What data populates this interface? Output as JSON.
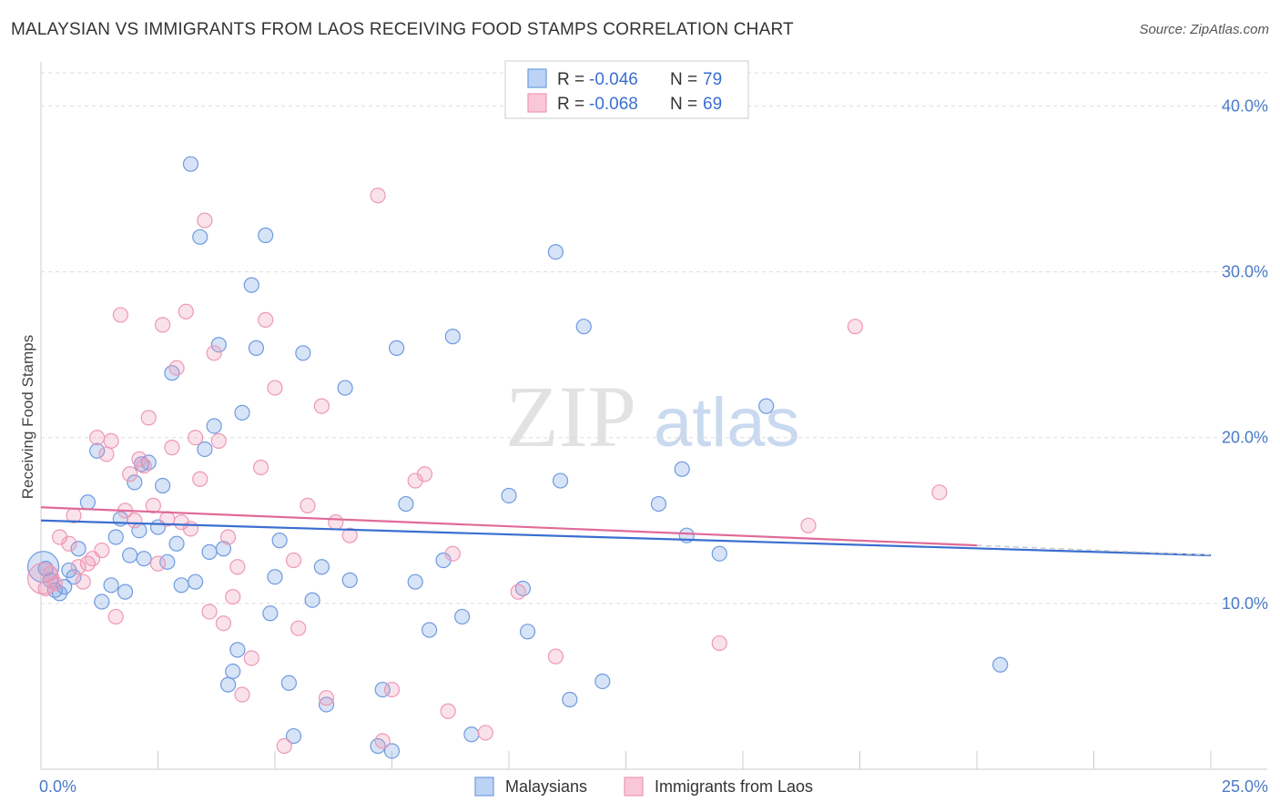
{
  "header": {
    "title": "MALAYSIAN VS IMMIGRANTS FROM LAOS RECEIVING FOOD STAMPS CORRELATION CHART",
    "source": "Source: ZipAtlas.com"
  },
  "watermark": {
    "zip": "ZIP",
    "atlas": "atlas"
  },
  "legend": {
    "r_label": "R =",
    "n_label": "N =",
    "series1": {
      "r": "-0.046",
      "n": "79"
    },
    "series2": {
      "r": "-0.068",
      "n": "69"
    }
  },
  "bottom_legend": {
    "series1": "Malaysians",
    "series2": "Immigrants from Laos"
  },
  "chart_data": {
    "type": "scatter",
    "title": "MALAYSIAN VS IMMIGRANTS FROM LAOS RECEIVING FOOD STAMPS CORRELATION CHART",
    "xlabel": "",
    "ylabel": "Receiving Food Stamps",
    "xlim": [
      0,
      25
    ],
    "ylim": [
      0,
      42
    ],
    "x_tick_labels": [
      "0.0%",
      "25.0%"
    ],
    "y_ticks": [
      10,
      20,
      30,
      40
    ],
    "y_tick_labels": [
      "10.0%",
      "20.0%",
      "30.0%",
      "40.0%"
    ],
    "grid": true,
    "legend_position": "top-center",
    "colors": {
      "series1": "#6f9be0",
      "series2": "#ee98b6",
      "trend1": "#3a6fd0",
      "trend2": "#e06a98"
    },
    "series": [
      {
        "name": "Malaysians",
        "r": -0.046,
        "n": 79,
        "trend": {
          "x": [
            0,
            25
          ],
          "y": [
            15.0,
            12.9
          ]
        },
        "points": [
          [
            0.1,
            12.1
          ],
          [
            0.2,
            11.4
          ],
          [
            0.3,
            10.8
          ],
          [
            0.4,
            10.6
          ],
          [
            0.5,
            11.0
          ],
          [
            0.6,
            12.0
          ],
          [
            0.7,
            11.6
          ],
          [
            0.8,
            13.3
          ],
          [
            1.0,
            16.1
          ],
          [
            1.2,
            19.2
          ],
          [
            1.3,
            10.1
          ],
          [
            1.5,
            11.1
          ],
          [
            1.6,
            14.0
          ],
          [
            1.7,
            15.1
          ],
          [
            1.8,
            10.7
          ],
          [
            1.9,
            12.9
          ],
          [
            2.0,
            17.3
          ],
          [
            2.1,
            14.4
          ],
          [
            2.15,
            18.4
          ],
          [
            2.2,
            12.7
          ],
          [
            2.3,
            18.5
          ],
          [
            2.5,
            14.6
          ],
          [
            2.6,
            17.1
          ],
          [
            2.7,
            12.5
          ],
          [
            2.8,
            23.9
          ],
          [
            2.9,
            13.6
          ],
          [
            3.0,
            11.1
          ],
          [
            3.2,
            36.5
          ],
          [
            3.3,
            11.3
          ],
          [
            3.4,
            32.1
          ],
          [
            3.5,
            19.3
          ],
          [
            3.6,
            13.1
          ],
          [
            3.7,
            20.7
          ],
          [
            3.8,
            25.6
          ],
          [
            3.9,
            13.3
          ],
          [
            4.0,
            5.1
          ],
          [
            4.1,
            5.9
          ],
          [
            4.2,
            7.2
          ],
          [
            4.3,
            21.5
          ],
          [
            4.5,
            29.2
          ],
          [
            4.6,
            25.4
          ],
          [
            4.8,
            32.2
          ],
          [
            4.9,
            9.4
          ],
          [
            5.0,
            11.6
          ],
          [
            5.1,
            13.8
          ],
          [
            5.3,
            5.2
          ],
          [
            5.4,
            2.0
          ],
          [
            5.6,
            25.1
          ],
          [
            5.8,
            10.2
          ],
          [
            6.0,
            12.2
          ],
          [
            6.1,
            3.9
          ],
          [
            6.5,
            23.0
          ],
          [
            6.6,
            11.4
          ],
          [
            7.2,
            1.4
          ],
          [
            7.3,
            4.8
          ],
          [
            7.5,
            1.1
          ],
          [
            7.6,
            25.4
          ],
          [
            7.8,
            16.0
          ],
          [
            8.0,
            11.3
          ],
          [
            8.3,
            8.4
          ],
          [
            8.6,
            12.6
          ],
          [
            8.8,
            26.1
          ],
          [
            9.0,
            9.2
          ],
          [
            9.2,
            2.1
          ],
          [
            10.0,
            16.5
          ],
          [
            10.3,
            10.9
          ],
          [
            10.4,
            8.3
          ],
          [
            11.0,
            31.2
          ],
          [
            11.1,
            17.4
          ],
          [
            11.3,
            4.2
          ],
          [
            11.6,
            26.7
          ],
          [
            12.0,
            5.3
          ],
          [
            13.2,
            16.0
          ],
          [
            13.7,
            18.1
          ],
          [
            13.8,
            14.1
          ],
          [
            14.5,
            13.0
          ],
          [
            15.5,
            21.9
          ],
          [
            20.5,
            6.3
          ],
          [
            0.05,
            12.2
          ]
        ]
      },
      {
        "name": "Immigrants from Laos",
        "r": -0.068,
        "n": 69,
        "trend": {
          "x": [
            0,
            20
          ],
          "y": [
            15.8,
            13.5
          ]
        },
        "points": [
          [
            0.05,
            11.5
          ],
          [
            0.2,
            11.8
          ],
          [
            0.4,
            14.0
          ],
          [
            0.6,
            13.6
          ],
          [
            0.7,
            15.3
          ],
          [
            0.8,
            12.2
          ],
          [
            0.9,
            11.3
          ],
          [
            1.0,
            12.4
          ],
          [
            1.1,
            12.7
          ],
          [
            1.2,
            20.0
          ],
          [
            1.3,
            13.2
          ],
          [
            1.4,
            19.0
          ],
          [
            1.5,
            19.8
          ],
          [
            1.6,
            9.2
          ],
          [
            1.7,
            27.4
          ],
          [
            1.8,
            15.6
          ],
          [
            1.9,
            17.8
          ],
          [
            2.0,
            15.0
          ],
          [
            2.1,
            18.7
          ],
          [
            2.2,
            18.3
          ],
          [
            2.3,
            21.2
          ],
          [
            2.4,
            15.9
          ],
          [
            2.5,
            12.4
          ],
          [
            2.6,
            26.8
          ],
          [
            2.7,
            15.1
          ],
          [
            2.8,
            19.4
          ],
          [
            2.9,
            24.2
          ],
          [
            3.0,
            14.9
          ],
          [
            3.1,
            27.6
          ],
          [
            3.2,
            14.5
          ],
          [
            3.3,
            20.0
          ],
          [
            3.4,
            17.5
          ],
          [
            3.5,
            33.1
          ],
          [
            3.6,
            9.5
          ],
          [
            3.7,
            25.1
          ],
          [
            3.8,
            19.8
          ],
          [
            3.9,
            8.8
          ],
          [
            4.0,
            14.0
          ],
          [
            4.1,
            10.4
          ],
          [
            4.2,
            12.2
          ],
          [
            4.3,
            4.5
          ],
          [
            4.5,
            6.7
          ],
          [
            4.7,
            18.2
          ],
          [
            4.8,
            27.1
          ],
          [
            5.0,
            23.0
          ],
          [
            5.2,
            1.4
          ],
          [
            5.4,
            12.6
          ],
          [
            5.5,
            8.5
          ],
          [
            5.7,
            15.9
          ],
          [
            6.0,
            21.9
          ],
          [
            6.1,
            4.3
          ],
          [
            6.3,
            14.9
          ],
          [
            6.6,
            14.1
          ],
          [
            7.2,
            34.6
          ],
          [
            7.3,
            1.7
          ],
          [
            7.5,
            4.8
          ],
          [
            8.0,
            17.4
          ],
          [
            8.2,
            17.8
          ],
          [
            8.7,
            3.5
          ],
          [
            8.8,
            13.0
          ],
          [
            9.5,
            2.2
          ],
          [
            10.2,
            10.7
          ],
          [
            11.0,
            6.8
          ],
          [
            14.5,
            7.6
          ],
          [
            16.4,
            14.7
          ],
          [
            17.4,
            26.7
          ],
          [
            19.2,
            16.7
          ],
          [
            0.1,
            10.9
          ],
          [
            0.3,
            11.2
          ]
        ]
      }
    ]
  }
}
